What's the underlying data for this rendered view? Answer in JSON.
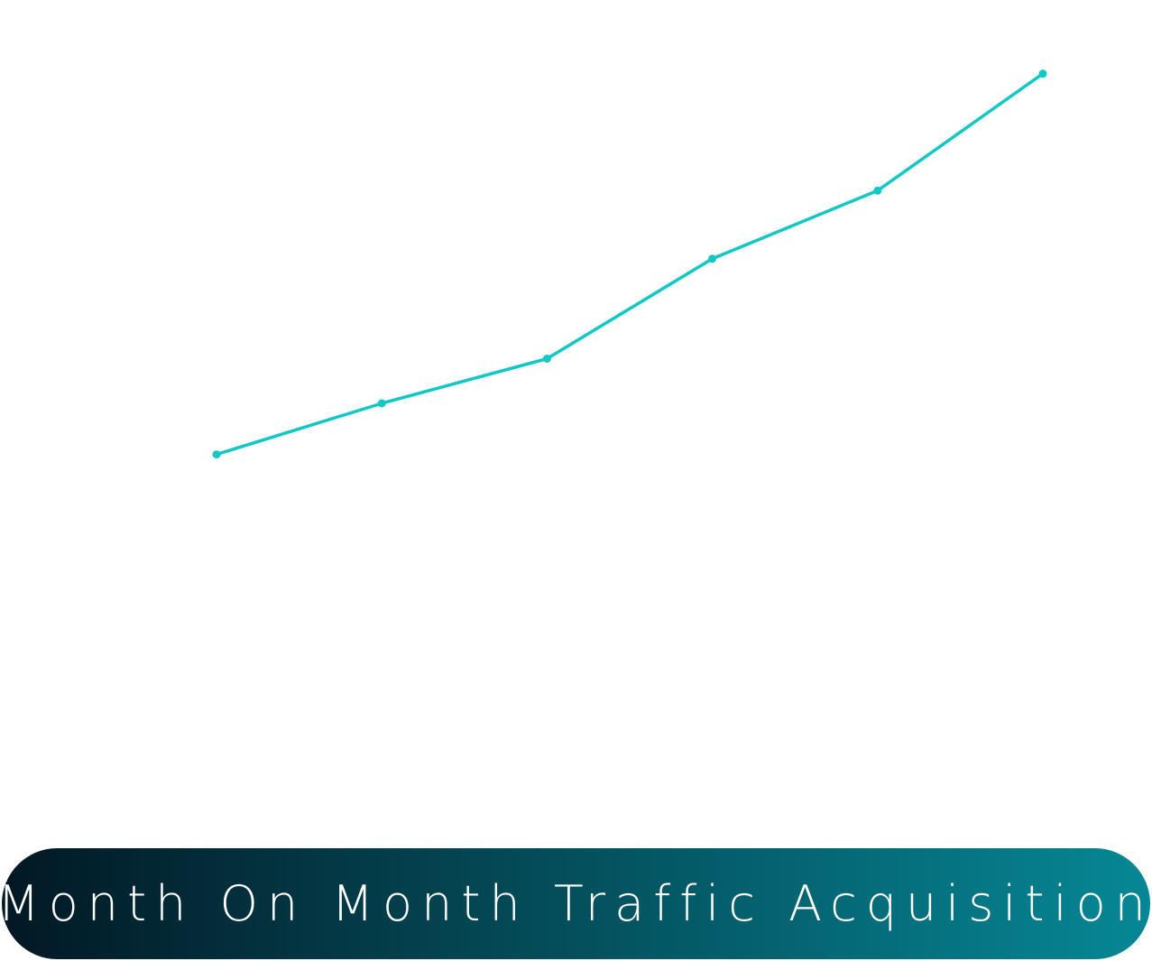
{
  "chart_data": {
    "type": "line",
    "title": "Month On Month Traffic Acquisition",
    "x": [
      1,
      2,
      3,
      4,
      5,
      6
    ],
    "series": [
      {
        "values": [
          58,
          70,
          80.5,
          104,
          120,
          147.5
        ]
      }
    ],
    "ylim": [
      0,
      161
    ],
    "grid": false,
    "axes_visible": false,
    "line_color": "#12c7c4"
  },
  "colors": {
    "line": "#12c7c4",
    "pill_gradient_start": "#021824",
    "pill_gradient_end": "#068795",
    "title_text": "#ffffff"
  }
}
